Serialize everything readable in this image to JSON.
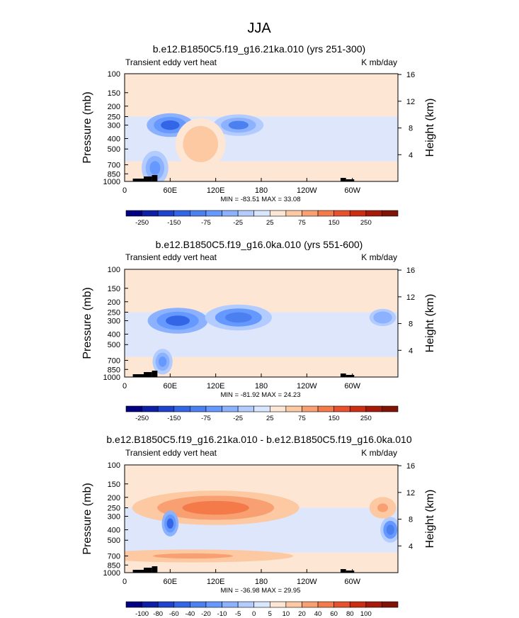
{
  "figure": {
    "title": "JJA"
  },
  "chart_data": [
    {
      "type": "heatmap",
      "title": "b.e12.B1850C5.f19_g16.21ka.010 (yrs 251-300)",
      "left_label": "Transient eddy vert heat",
      "right_label": "K mb/day",
      "ylabel": "Pressure (mb)",
      "ylabel_right": "Height (km)",
      "x_ticks": [
        "0",
        "60E",
        "120E",
        "180",
        "120W",
        "60W"
      ],
      "y_ticks": [
        "100",
        "150",
        "200",
        "250",
        "300",
        "400",
        "500",
        "700",
        "850",
        "1000"
      ],
      "y_right_ticks": [
        "16",
        "12",
        "8",
        "4"
      ],
      "stats": "MIN = -83.51  MAX = 33.08",
      "colorbar_labels": [
        "-250",
        "-150",
        "-75",
        "-25",
        "25",
        "75",
        "150",
        "250"
      ],
      "colorbar_colors": [
        "#000080",
        "#0d1fa6",
        "#1f43cc",
        "#3366e6",
        "#4c80f0",
        "#6699ff",
        "#8cb2ff",
        "#b3ccff",
        "#d9e6ff",
        "#fde6d3",
        "#fcc9a3",
        "#f9a072",
        "#f47a4a",
        "#e8512d",
        "#cc2e14",
        "#a61a0a",
        "#801305"
      ],
      "features": [
        {
          "lon": 60,
          "p": 300,
          "value": -83.5,
          "rx": 14,
          "ry": 55
        },
        {
          "lon": 150,
          "p": 300,
          "value": -60,
          "rx": 15,
          "ry": 50
        },
        {
          "lon": 40,
          "p": 750,
          "value": -50,
          "rx": 8,
          "ry": 80
        },
        {
          "lon": 100,
          "p": 450,
          "value": 30,
          "rx": 15,
          "ry": 120
        }
      ]
    },
    {
      "type": "heatmap",
      "title": "b.e12.B1850C5.f19_g16.0ka.010 (yrs 551-600)",
      "left_label": "Transient eddy vert heat",
      "right_label": "K mb/day",
      "ylabel": "Pressure (mb)",
      "ylabel_right": "Height (km)",
      "x_ticks": [
        "0",
        "60E",
        "120E",
        "180",
        "120W",
        "60W"
      ],
      "y_ticks": [
        "100",
        "150",
        "200",
        "250",
        "300",
        "400",
        "500",
        "700",
        "850",
        "1000"
      ],
      "y_right_ticks": [
        "16",
        "12",
        "8",
        "4"
      ],
      "stats": "MIN = -81.92  MAX = 24.23",
      "colorbar_labels": [
        "-250",
        "-150",
        "-75",
        "-25",
        "25",
        "75",
        "150",
        "250"
      ],
      "colorbar_colors": [
        "#000080",
        "#0d1fa6",
        "#1f43cc",
        "#3366e6",
        "#4c80f0",
        "#6699ff",
        "#8cb2ff",
        "#b3ccff",
        "#d9e6ff",
        "#fde6d3",
        "#fcc9a3",
        "#f9a072",
        "#f47a4a",
        "#e8512d",
        "#cc2e14",
        "#a61a0a",
        "#801305"
      ],
      "features": [
        {
          "lon": 70,
          "p": 300,
          "value": -81.9,
          "rx": 18,
          "ry": 60
        },
        {
          "lon": 150,
          "p": 280,
          "value": -70,
          "rx": 20,
          "ry": 60
        },
        {
          "lon": 340,
          "p": 280,
          "value": -40,
          "rx": 8,
          "ry": 40
        },
        {
          "lon": 50,
          "p": 720,
          "value": -45,
          "rx": 6,
          "ry": 60
        }
      ]
    },
    {
      "type": "heatmap",
      "title": "b.e12.B1850C5.f19_g16.21ka.010 - b.e12.B1850C5.f19_g16.0ka.010",
      "left_label": "Transient eddy vert heat",
      "right_label": "K mb/day",
      "ylabel": "Pressure (mb)",
      "ylabel_right": "Height (km)",
      "x_ticks": [
        "0",
        "60E",
        "120E",
        "180",
        "120W",
        "60W"
      ],
      "y_ticks": [
        "100",
        "150",
        "200",
        "250",
        "300",
        "400",
        "500",
        "700",
        "850",
        "1000"
      ],
      "y_right_ticks": [
        "16",
        "12",
        "8",
        "4"
      ],
      "stats": "MIN = -36.98  MAX = 29.95",
      "colorbar_labels": [
        "-100",
        "-80",
        "-60",
        "-40",
        "-20",
        "-10",
        "-5",
        "0",
        "5",
        "10",
        "20",
        "40",
        "60",
        "80",
        "100"
      ],
      "colorbar_colors": [
        "#000080",
        "#0d1fa6",
        "#1f43cc",
        "#3366e6",
        "#4c80f0",
        "#6699ff",
        "#8cb2ff",
        "#b3ccff",
        "#d9e6ff",
        "#fde6d3",
        "#fcc9a3",
        "#f9a072",
        "#f47a4a",
        "#e8512d",
        "#cc2e14",
        "#a61a0a",
        "#801305"
      ],
      "features": [
        {
          "lon": 120,
          "p": 250,
          "value": 29.9,
          "rx": 50,
          "ry": 80
        },
        {
          "lon": 60,
          "p": 350,
          "value": -37,
          "rx": 5,
          "ry": 60
        },
        {
          "lon": 350,
          "p": 400,
          "value": -30,
          "rx": 6,
          "ry": 60
        },
        {
          "lon": 340,
          "p": 250,
          "value": 20,
          "rx": 8,
          "ry": 50
        },
        {
          "lon": 90,
          "p": 700,
          "value": 20,
          "rx": 60,
          "ry": 30
        }
      ]
    }
  ]
}
